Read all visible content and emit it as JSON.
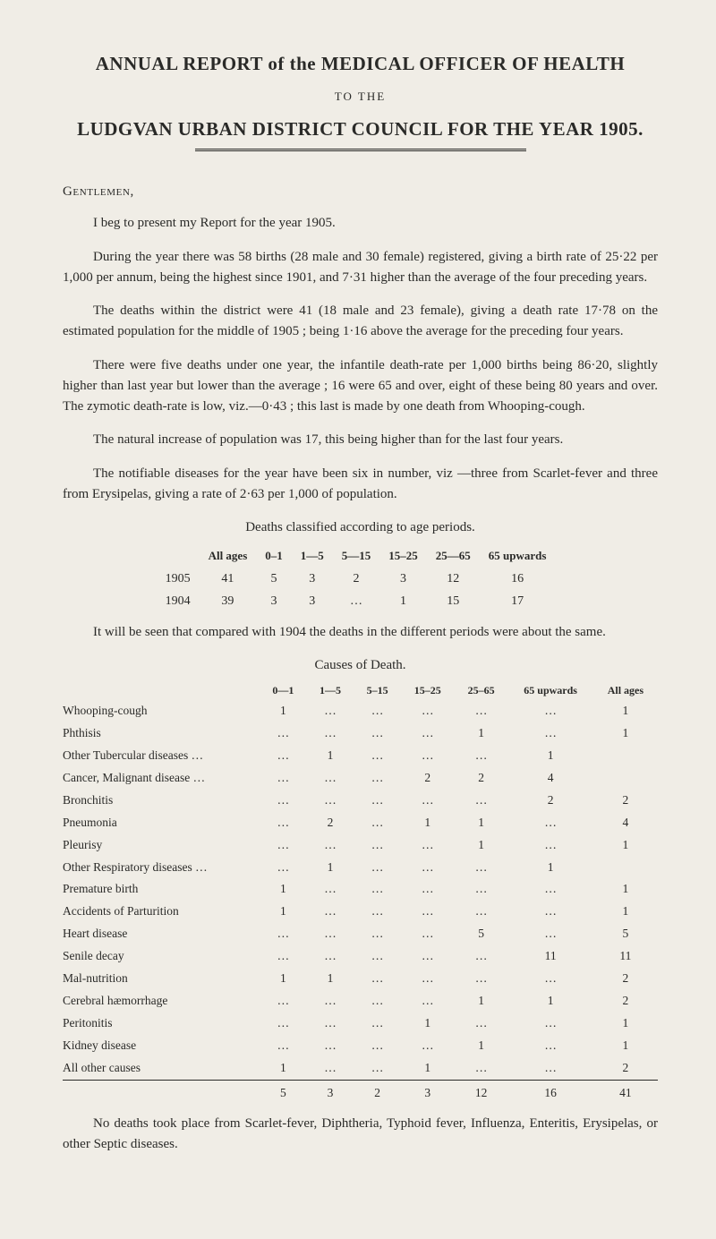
{
  "header": {
    "main_title": "ANNUAL REPORT of the MEDICAL OFFICER OF HEALTH",
    "to_the": "TO THE",
    "council_line": "LUDGVAN URBAN DISTRICT COUNCIL FOR THE YEAR 1905."
  },
  "salutation": "Gentlemen,",
  "paragraphs": {
    "p1": "I beg to present my Report for the year 1905.",
    "p2": "During the year there was 58 births (28 male and 30 female) registered, giving a birth rate of 25·22 per 1,000 per annum, being the highest since 1901, and 7·31 higher than the average of the four preceding years.",
    "p3": "The deaths within the district were 41 (18 male and 23 female), giving a death rate 17·78 on the estimated population for the middle of 1905 ; being 1·16 above the average for the preceding four years.",
    "p4": "There were five deaths under one year, the infantile death-rate per 1,000 births being 86·20, slightly higher than last year but lower than the average ; 16 were 65 and over, eight of these being 80 years and over. The zymotic death-rate is low, viz.—0·43 ; this last is made by one death from Whooping-cough.",
    "p5": "The natural increase of population was 17, this being higher than for the last four years.",
    "p6": "The notifiable diseases for the year have been six in number, viz —three from Scarlet-fever and three from Erysipelas, giving a rate of 2·63 per 1,000 of population.",
    "p7": "It will be seen that compared with 1904 the deaths in the different periods were about the same.",
    "p8": "No deaths took place from Scarlet-fever, Diphtheria, Typhoid fever, Influenza, Enteritis, Erysipelas, or other Septic diseases."
  },
  "age_table": {
    "caption": "Deaths classified according to age periods.",
    "columns": [
      "",
      "All ages",
      "0–1",
      "1—5",
      "5—15",
      "15–25",
      "25—65",
      "65 upwards"
    ],
    "rows": [
      [
        "1905",
        "41",
        "5",
        "3",
        "2",
        "3",
        "12",
        "16"
      ],
      [
        "1904",
        "39",
        "3",
        "3",
        "…",
        "1",
        "15",
        "17"
      ]
    ]
  },
  "causes_table": {
    "caption": "Causes of Death.",
    "columns": [
      "",
      "0—1",
      "1—5",
      "5–15",
      "15–25",
      "25–65",
      "65 upwards",
      "All ages"
    ],
    "rows": [
      [
        "Whooping-cough",
        "1",
        "…",
        "…",
        "…",
        "…",
        "…",
        "1"
      ],
      [
        "Phthisis",
        "…",
        "…",
        "…",
        "…",
        "1",
        "…",
        "1"
      ],
      [
        "Other Tubercular diseases …",
        "…",
        "1",
        "…",
        "…",
        "…",
        "1"
      ],
      [
        "Cancer, Malignant disease …",
        "…",
        "…",
        "…",
        "2",
        "2",
        "4"
      ],
      [
        "Bronchitis",
        "…",
        "…",
        "…",
        "…",
        "…",
        "2",
        "2"
      ],
      [
        "Pneumonia",
        "…",
        "2",
        "…",
        "1",
        "1",
        "…",
        "4"
      ],
      [
        "Pleurisy",
        "…",
        "…",
        "…",
        "…",
        "1",
        "…",
        "1"
      ],
      [
        "Other Respiratory diseases …",
        "…",
        "1",
        "…",
        "…",
        "…",
        "1"
      ],
      [
        "Premature birth",
        "1",
        "…",
        "…",
        "…",
        "…",
        "…",
        "1"
      ],
      [
        "Accidents of Parturition",
        "1",
        "…",
        "…",
        "…",
        "…",
        "…",
        "1"
      ],
      [
        "Heart disease",
        "…",
        "…",
        "…",
        "…",
        "5",
        "…",
        "5"
      ],
      [
        "Senile decay",
        "…",
        "…",
        "…",
        "…",
        "…",
        "11",
        "11"
      ],
      [
        "Mal-nutrition",
        "1",
        "1",
        "…",
        "…",
        "…",
        "…",
        "2"
      ],
      [
        "Cerebral hæmorrhage",
        "…",
        "…",
        "…",
        "…",
        "1",
        "1",
        "2"
      ],
      [
        "Peritonitis",
        "…",
        "…",
        "…",
        "1",
        "…",
        "…",
        "1"
      ],
      [
        "Kidney disease",
        "…",
        "…",
        "…",
        "…",
        "1",
        "…",
        "1"
      ],
      [
        "All other causes",
        "1",
        "…",
        "…",
        "1",
        "…",
        "…",
        "2"
      ]
    ],
    "totals": [
      "",
      "5",
      "3",
      "2",
      "3",
      "12",
      "16",
      "41"
    ]
  }
}
